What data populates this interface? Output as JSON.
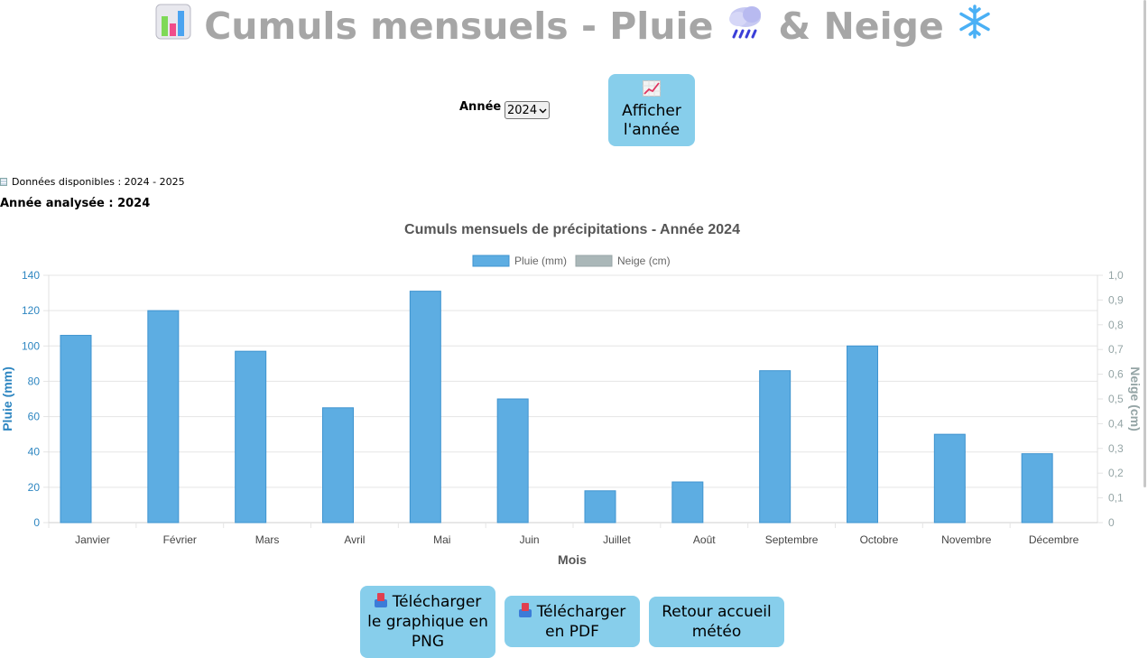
{
  "title": {
    "text_1": "Cumuls mensuels - Pluie",
    "text_2": "& Neige",
    "icon_chart": "bar-chart-icon",
    "icon_rain": "rain-cloud-icon",
    "icon_snow": "snowflake-icon"
  },
  "controls": {
    "year_label": "Année :",
    "year_selected": "2024",
    "show_button_icon": "chart-increasing-icon",
    "show_button_line1": "Afficher",
    "show_button_line2": "l'année"
  },
  "info": {
    "available_text": "Données disponibles : 2024 - 2025",
    "analysed_text": "Année analysée : 2024"
  },
  "chart_data": {
    "type": "bar",
    "title": "Cumuls mensuels de précipitations - Année 2024",
    "xlabel": "Mois",
    "ylabel_left": "Pluie (mm)",
    "ylabel_right": "Neige (cm)",
    "categories": [
      "Janvier",
      "Février",
      "Mars",
      "Avril",
      "Mai",
      "Juin",
      "Juillet",
      "Août",
      "Septembre",
      "Octobre",
      "Novembre",
      "Décembre"
    ],
    "series": [
      {
        "name": "Pluie (mm)",
        "axis": "left",
        "color": "#5dade2",
        "values": [
          106,
          120,
          97,
          65,
          131,
          70,
          18,
          23,
          86,
          100,
          50,
          39
        ]
      },
      {
        "name": "Neige (cm)",
        "axis": "right",
        "color": "#aab7b8",
        "values": [
          0,
          0,
          0,
          0,
          0,
          0,
          0,
          0,
          0,
          0,
          0,
          0
        ]
      }
    ],
    "ylim_left": [
      0,
      140
    ],
    "yticks_left": [
      "0",
      "20",
      "40",
      "60",
      "80",
      "100",
      "120",
      "140"
    ],
    "ylim_right": [
      0,
      1
    ],
    "yticks_right": [
      "0",
      "0,1",
      "0,2",
      "0,3",
      "0,4",
      "0,5",
      "0,6",
      "0,7",
      "0,8",
      "0,9",
      "1,0"
    ],
    "grid": true,
    "legend_position": "top-center",
    "left_axis_color": "#2e86c1",
    "right_axis_color": "#95a5a6"
  },
  "actions": {
    "png_icon": "floppy-disk-icon",
    "png_label": "Télécharger le graphique en PNG",
    "pdf_icon": "floppy-disk-icon",
    "pdf_label": "Télécharger en PDF",
    "home_label": "Retour accueil météo"
  }
}
